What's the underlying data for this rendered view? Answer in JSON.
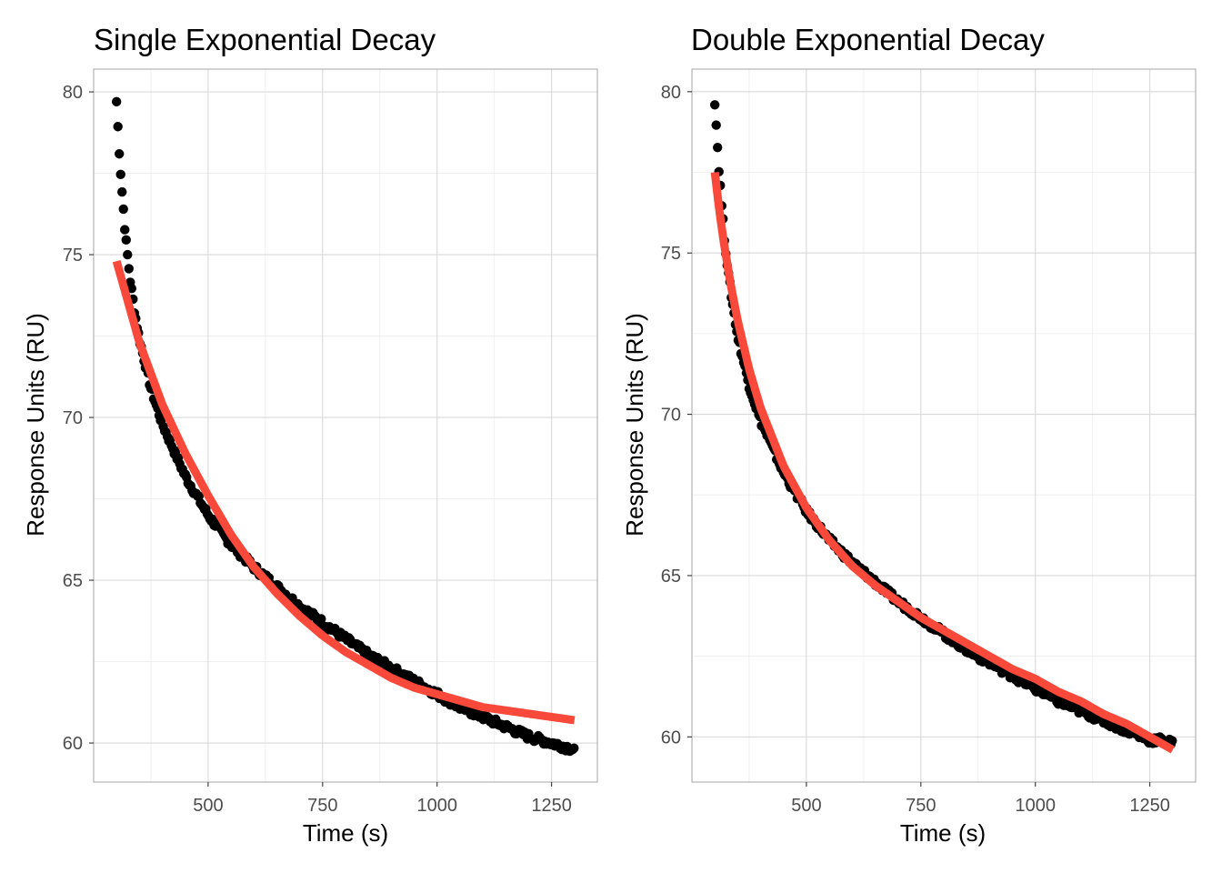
{
  "chart_data": [
    {
      "type": "scatter",
      "title": "Single Exponential Decay",
      "xlabel": "Time (s)",
      "ylabel": "Response Units (RU)",
      "xlim": [
        250,
        1350
      ],
      "ylim": [
        58.8,
        80.7
      ],
      "xticks": [
        500,
        750,
        1000,
        1250
      ],
      "yticks": [
        60,
        65,
        70,
        75,
        80
      ],
      "grid": true,
      "legend": "none",
      "series": [
        {
          "kind": "points",
          "color": "#000000",
          "x": [
            300,
            305,
            310,
            315,
            320,
            330,
            340,
            350,
            375,
            400,
            450,
            500,
            550,
            600,
            650,
            700,
            750,
            800,
            850,
            900,
            950,
            1000,
            1050,
            1100,
            1150,
            1200,
            1250,
            1275,
            1300
          ],
          "y": [
            79.7,
            78.4,
            77.3,
            76.4,
            75.5,
            74.2,
            73.2,
            72.4,
            70.9,
            69.8,
            68.2,
            67.0,
            66.1,
            65.4,
            64.8,
            64.2,
            63.7,
            63.2,
            62.7,
            62.3,
            61.9,
            61.5,
            61.1,
            60.8,
            60.5,
            60.2,
            60.0,
            59.9,
            59.8
          ]
        },
        {
          "kind": "fit-line",
          "color": "#f8493a",
          "x": [
            300,
            350,
            400,
            450,
            500,
            550,
            600,
            650,
            700,
            750,
            800,
            850,
            900,
            950,
            1000,
            1050,
            1100,
            1150,
            1200,
            1250,
            1300
          ],
          "y": [
            74.8,
            72.3,
            70.4,
            68.9,
            67.6,
            66.4,
            65.4,
            64.6,
            63.9,
            63.3,
            62.8,
            62.4,
            62.0,
            61.7,
            61.5,
            61.3,
            61.1,
            61.0,
            60.9,
            60.8,
            60.7
          ]
        }
      ]
    },
    {
      "type": "scatter",
      "title": "Double Exponential Decay",
      "xlabel": "Time (s)",
      "ylabel": "Response Units (RU)",
      "xlim": [
        250,
        1350
      ],
      "ylim": [
        58.6,
        80.7
      ],
      "xticks": [
        500,
        750,
        1000,
        1250
      ],
      "yticks": [
        60,
        65,
        70,
        75,
        80
      ],
      "grid": true,
      "legend": "none",
      "series": [
        {
          "kind": "points",
          "color": "#000000",
          "x": [
            300,
            305,
            310,
            315,
            320,
            330,
            340,
            350,
            375,
            400,
            450,
            500,
            550,
            600,
            650,
            700,
            750,
            800,
            850,
            900,
            950,
            1000,
            1050,
            1100,
            1150,
            1200,
            1250,
            1275,
            1300
          ],
          "y": [
            79.7,
            78.5,
            77.4,
            76.5,
            75.6,
            74.3,
            73.3,
            72.4,
            70.9,
            69.8,
            68.2,
            67.0,
            66.1,
            65.4,
            64.8,
            64.2,
            63.7,
            63.2,
            62.7,
            62.3,
            61.9,
            61.5,
            61.1,
            60.8,
            60.5,
            60.2,
            59.9,
            59.9,
            59.8
          ]
        },
        {
          "kind": "fit-line",
          "color": "#f8493a",
          "x": [
            300,
            310,
            320,
            335,
            350,
            375,
            400,
            450,
            500,
            550,
            600,
            650,
            700,
            750,
            800,
            850,
            900,
            950,
            1000,
            1050,
            1100,
            1150,
            1200,
            1250,
            1300
          ],
          "y": [
            77.5,
            76.3,
            75.3,
            74.0,
            72.9,
            71.4,
            70.2,
            68.4,
            67.1,
            66.1,
            65.3,
            64.7,
            64.2,
            63.7,
            63.3,
            62.9,
            62.5,
            62.1,
            61.8,
            61.4,
            61.1,
            60.7,
            60.4,
            60.0,
            59.6
          ]
        }
      ]
    }
  ]
}
